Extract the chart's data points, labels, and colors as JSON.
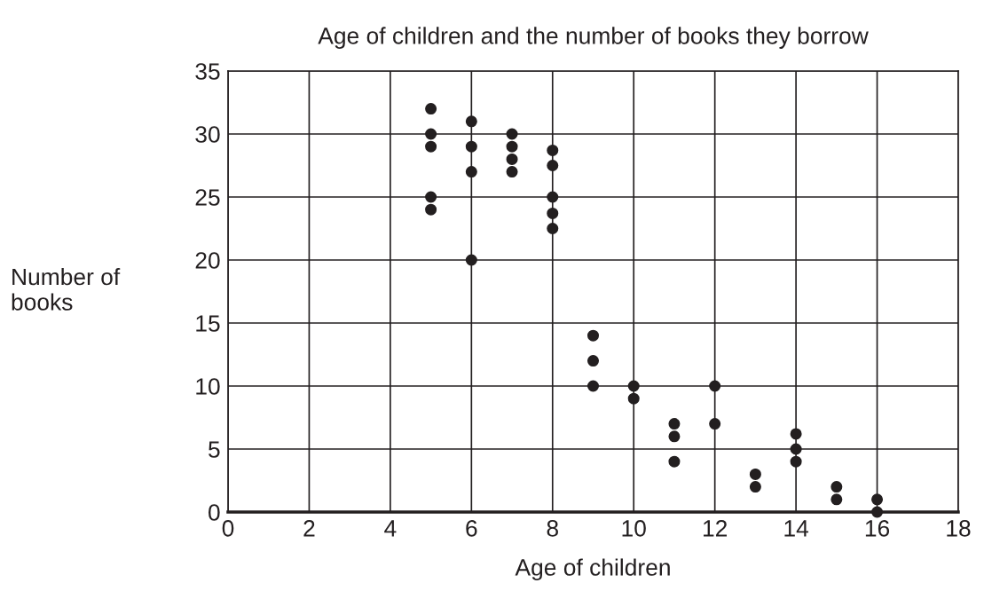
{
  "chart_data": {
    "type": "scatter",
    "title": "Age of children and the number of books they borrow",
    "xlabel": "Age of children",
    "ylabel": "Number of\nbooks",
    "series": [
      {
        "color": "#231f20",
        "x": [
          5,
          5,
          5,
          5,
          5,
          6,
          6,
          6,
          6,
          7,
          7,
          7,
          7,
          8,
          8,
          8,
          8,
          8,
          9,
          9,
          9,
          10,
          10,
          11,
          11,
          11,
          12,
          12,
          13,
          13,
          14,
          14,
          14,
          15,
          15,
          16,
          16
        ],
        "values": [
          32,
          30,
          29,
          25,
          24,
          31,
          29,
          27,
          20,
          30,
          29,
          28,
          27,
          28.7,
          27.5,
          25,
          23.7,
          22.5,
          14,
          12,
          10,
          10,
          9,
          7,
          6,
          4,
          10,
          7,
          3,
          2,
          6.2,
          5,
          4,
          2,
          1,
          1,
          0
        ]
      }
    ],
    "xlim": [
      0,
      18
    ],
    "xticks": [
      0,
      2,
      4,
      6,
      8,
      10,
      12,
      14,
      16,
      18
    ],
    "ylim": [
      0,
      35
    ],
    "yticks": [
      0,
      5,
      10,
      15,
      20,
      25,
      30,
      35
    ],
    "grid": true,
    "marker": "circle",
    "legend": false
  }
}
